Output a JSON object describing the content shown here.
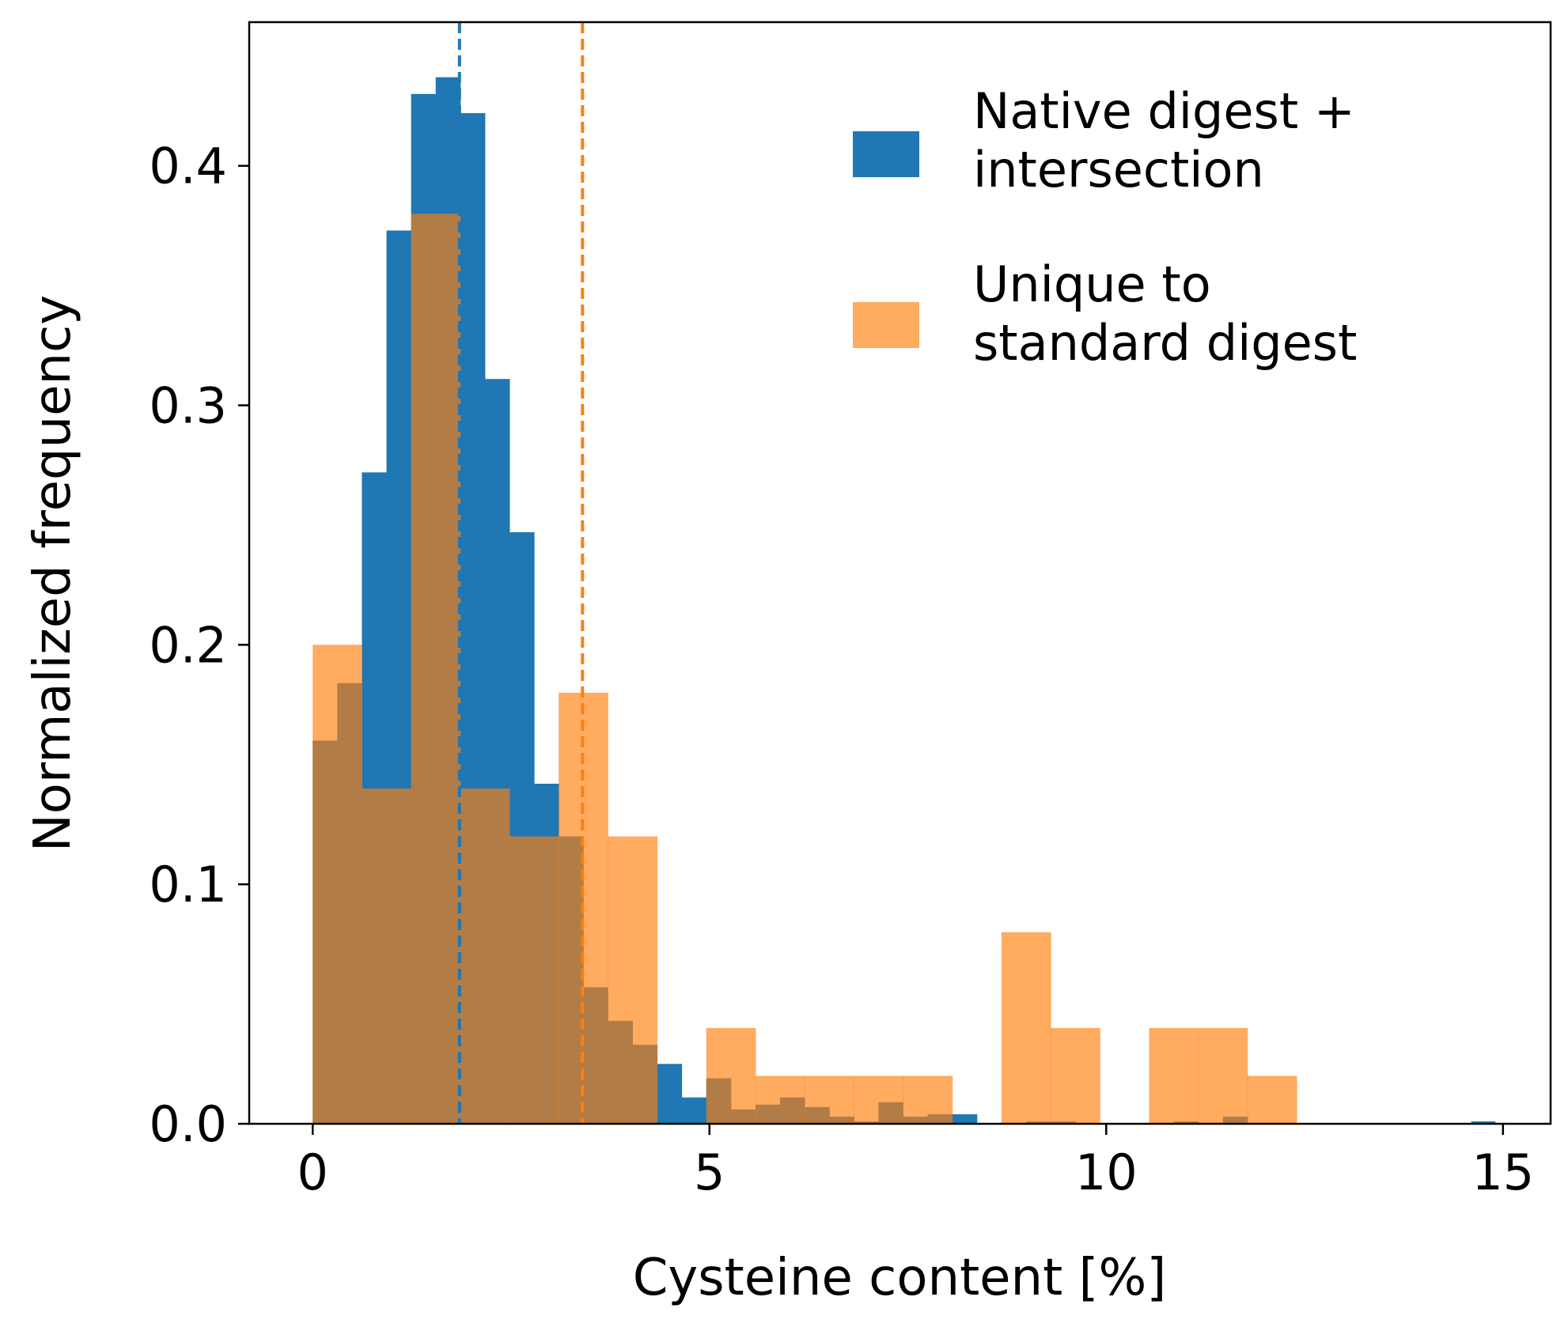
{
  "chart_data": {
    "type": "histogram",
    "title": "",
    "xlabel": "Cysteine content [%]",
    "ylabel": "Normalized frequency",
    "xlim": [
      -0.8,
      15.6
    ],
    "ylim": [
      0,
      0.46
    ],
    "xticks": [
      0,
      5,
      10,
      15
    ],
    "yticks": [
      0.0,
      0.1,
      0.2,
      0.3,
      0.4
    ],
    "xtick_labels": [
      "0",
      "5",
      "10",
      "15"
    ],
    "ytick_labels": [
      "0.0",
      "0.1",
      "0.2",
      "0.3",
      "0.4"
    ],
    "grid": false,
    "legend_position": "top-right",
    "series": [
      {
        "name": "Native digest +\nintersection",
        "color": "#1f77b4",
        "opacity": 1.0,
        "bin_edges": [
          0,
          0.31,
          0.62,
          0.93,
          1.24,
          1.55,
          1.86,
          2.17,
          2.48,
          2.79,
          3.1,
          3.41,
          3.72,
          4.03,
          4.34,
          4.65,
          4.96,
          5.27,
          5.58,
          5.89,
          6.2,
          6.51,
          6.82,
          7.13,
          7.44,
          7.75,
          8.06,
          8.37,
          8.68,
          8.99,
          9.3,
          9.61,
          9.92,
          10.23,
          10.54,
          10.85,
          11.16,
          11.47,
          11.78
        ],
        "values": [
          0.16,
          0.184,
          0.272,
          0.373,
          0.43,
          0.437,
          0.422,
          0.311,
          0.247,
          0.142,
          0.12,
          0.057,
          0.043,
          0.033,
          0.025,
          0.011,
          0.019,
          0.006,
          0.008,
          0.011,
          0.007,
          0.003,
          0.001,
          0.009,
          0.003,
          0.004,
          0.004,
          0.0,
          0.0,
          0.001,
          0.001,
          0.0,
          0.0,
          0.0,
          0.0,
          0.001,
          0.0,
          0.003
        ],
        "extra_bins": [
          {
            "x0": 14.6,
            "x1": 14.9,
            "value": 0.001
          }
        ],
        "mean": 1.85
      },
      {
        "name": "Unique to\nstandard digest",
        "color": "#ff7f0e",
        "opacity": 0.66,
        "bin_edges": [
          0,
          0.62,
          1.24,
          1.86,
          2.48,
          3.1,
          3.72,
          4.34,
          4.96,
          5.58,
          6.2,
          6.82,
          7.44,
          8.06,
          8.68,
          9.3,
          9.92,
          10.54,
          11.16,
          11.78,
          12.4
        ],
        "values": [
          0.2,
          0.14,
          0.38,
          0.14,
          0.12,
          0.18,
          0.12,
          0.0,
          0.04,
          0.02,
          0.02,
          0.02,
          0.02,
          0.0,
          0.08,
          0.04,
          0.0,
          0.04,
          0.04,
          0.02
        ],
        "mean": 3.4
      }
    ]
  }
}
